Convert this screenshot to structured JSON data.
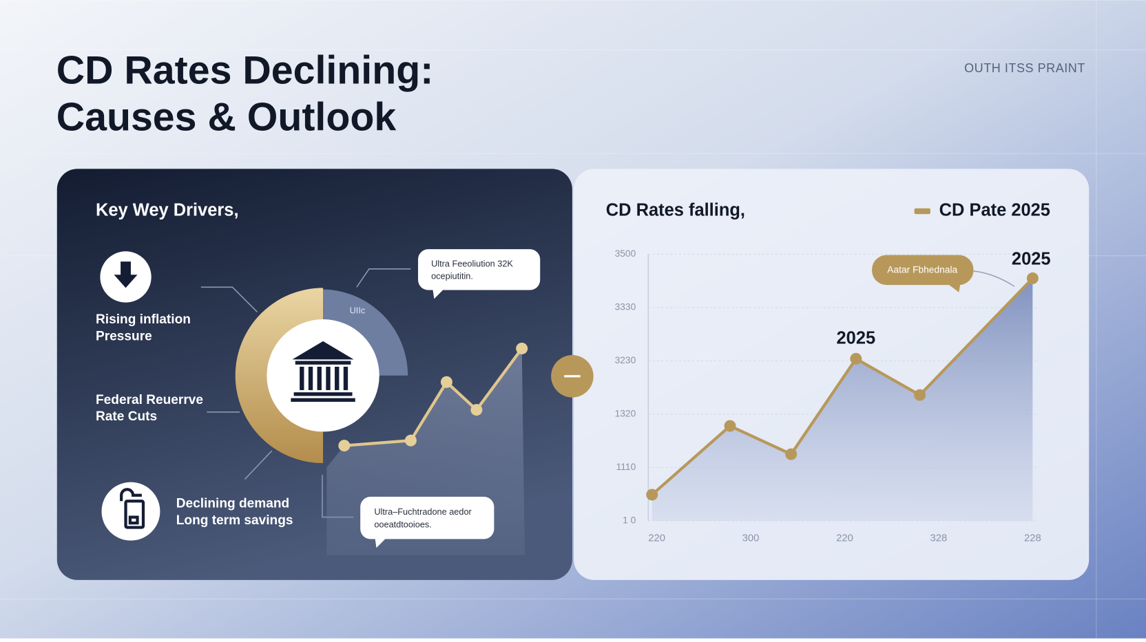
{
  "header": {
    "title_line1": "CD Rates Declining:",
    "title_line2": "Causes & Outlook",
    "tag": "OUTH ITSS PRAINT"
  },
  "drivers_panel": {
    "title": "Key Wey Drivers,",
    "drivers": [
      [
        "Rising inflation",
        "Pressure"
      ],
      [
        "Federal Reuerrve",
        "Rate Cuts"
      ],
      [
        "Declining demand",
        "Long term savings"
      ]
    ],
    "donut_label": "UIIc",
    "callouts": [
      [
        "Ultra Feeoliution 32K",
        "ocepiutitin."
      ],
      [
        "Ultra–Fuchtradone aedor",
        "ooeatdtooioes."
      ]
    ]
  },
  "chart_data": {
    "type": "line",
    "title": "CD Rates falling,",
    "x": [
      -0.05,
      0.78,
      1.43,
      2.12,
      2.8,
      4.0
    ],
    "xlim": [
      -0.09,
      4.04
    ],
    "xticks": [
      {
        "value": 0,
        "label": "220"
      },
      {
        "value": 1,
        "label": "300"
      },
      {
        "value": 2,
        "label": "220"
      },
      {
        "value": 3,
        "label": "328"
      },
      {
        "value": 4,
        "label": "228"
      }
    ],
    "series": [
      {
        "name": "CD Pate 2025",
        "color": "#b8985a",
        "values": [
          0.49,
          1.78,
          1.25,
          3.04,
          2.36,
          4.55
        ]
      }
    ],
    "ylim": [
      0,
      5
    ],
    "yticks": [
      {
        "value": 0,
        "label": "1 0"
      },
      {
        "value": 1,
        "label": "1110"
      },
      {
        "value": 2,
        "label": "1320"
      },
      {
        "value": 3,
        "label": "3230"
      },
      {
        "value": 4,
        "label": "3330"
      },
      {
        "value": 5,
        "label": "3500"
      }
    ],
    "grid": true,
    "legend": "top-right",
    "annotations": [
      "2025",
      "2025",
      "Aatar Fbhednala"
    ]
  }
}
